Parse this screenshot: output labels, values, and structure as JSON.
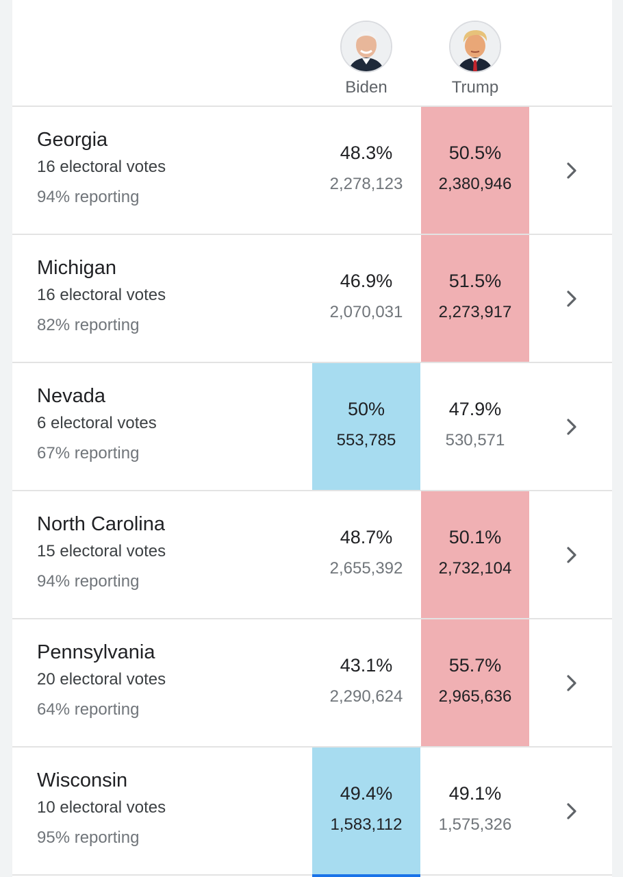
{
  "candidates": [
    {
      "name": "Biden",
      "party_color": "#a7dcf0"
    },
    {
      "name": "Trump",
      "party_color": "#f0b0b3"
    }
  ],
  "states": [
    {
      "name": "Georgia",
      "electoral": "16 electoral votes",
      "reporting": "94% reporting",
      "biden_pct": "48.3%",
      "biden_votes": "2,278,123",
      "trump_pct": "50.5%",
      "trump_votes": "2,380,946",
      "leader": "trump"
    },
    {
      "name": "Michigan",
      "electoral": "16 electoral votes",
      "reporting": "82% reporting",
      "biden_pct": "46.9%",
      "biden_votes": "2,070,031",
      "trump_pct": "51.5%",
      "trump_votes": "2,273,917",
      "leader": "trump"
    },
    {
      "name": "Nevada",
      "electoral": "6 electoral votes",
      "reporting": "67% reporting",
      "biden_pct": "50%",
      "biden_votes": "553,785",
      "trump_pct": "47.9%",
      "trump_votes": "530,571",
      "leader": "biden"
    },
    {
      "name": "North Carolina",
      "electoral": "15 electoral votes",
      "reporting": "94% reporting",
      "biden_pct": "48.7%",
      "biden_votes": "2,655,392",
      "trump_pct": "50.1%",
      "trump_votes": "2,732,104",
      "leader": "trump"
    },
    {
      "name": "Pennsylvania",
      "electoral": "20 electoral votes",
      "reporting": "64% reporting",
      "biden_pct": "43.1%",
      "biden_votes": "2,290,624",
      "trump_pct": "55.7%",
      "trump_votes": "2,965,636",
      "leader": "trump"
    },
    {
      "name": "Wisconsin",
      "electoral": "10 electoral votes",
      "reporting": "95% reporting",
      "biden_pct": "49.4%",
      "biden_votes": "1,583,112",
      "trump_pct": "49.1%",
      "trump_votes": "1,575,326",
      "leader": "biden"
    }
  ],
  "icons": {
    "row_action": "chevron-right-icon"
  }
}
